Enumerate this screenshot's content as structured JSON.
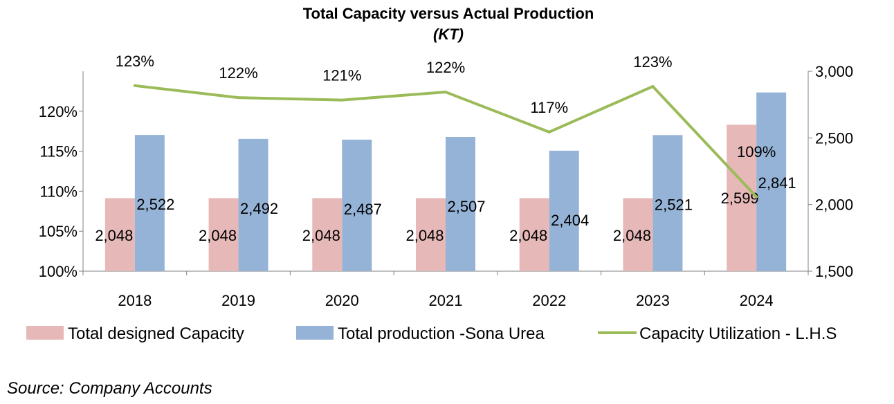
{
  "chart_data": {
    "type": "bar",
    "title": "Total Capacity versus Actual Production",
    "subtitle": "(KT)",
    "categories": [
      "2018",
      "2019",
      "2020",
      "2021",
      "2022",
      "2023",
      "2024"
    ],
    "series": [
      {
        "name": "Total designed Capacity",
        "type": "bar",
        "axis": "right",
        "color": "#E6B9B8",
        "values": [
          2048,
          2048,
          2048,
          2048,
          2048,
          2048,
          2599
        ],
        "labels": [
          "2,048",
          "2,048",
          "2,048",
          "2,048",
          "2,048",
          "2,048",
          "2,599"
        ]
      },
      {
        "name": "Total production -Sona Urea",
        "type": "bar",
        "axis": "right",
        "color": "#95B3D7",
        "values": [
          2522,
          2492,
          2487,
          2507,
          2404,
          2521,
          2841
        ],
        "labels": [
          "2,522",
          "2,492",
          "2,487",
          "2,507",
          "2,404",
          "2,521",
          "2,841"
        ]
      },
      {
        "name": "Capacity Utilization - L.H.S",
        "type": "line",
        "axis": "left",
        "color": "#9BBB59",
        "values": [
          123.2,
          121.7,
          121.4,
          122.4,
          117.4,
          123.1,
          109.3
        ],
        "labels": [
          "123%",
          "122%",
          "121%",
          "122%",
          "117%",
          "123%",
          "109%"
        ]
      }
    ],
    "left_axis": {
      "min": 100,
      "max": 125,
      "ticks": [
        100,
        105,
        110,
        115,
        120
      ],
      "tick_labels": [
        "100%",
        "105%",
        "110%",
        "115%",
        "120%"
      ]
    },
    "right_axis": {
      "min": 1500,
      "max": 3000,
      "ticks": [
        1500,
        2000,
        2500,
        3000
      ],
      "tick_labels": [
        "1,500",
        "2,000",
        "2,500",
        "3,000"
      ]
    },
    "grid": false,
    "legend_position": "bottom"
  },
  "source": "Source: Company Accounts"
}
